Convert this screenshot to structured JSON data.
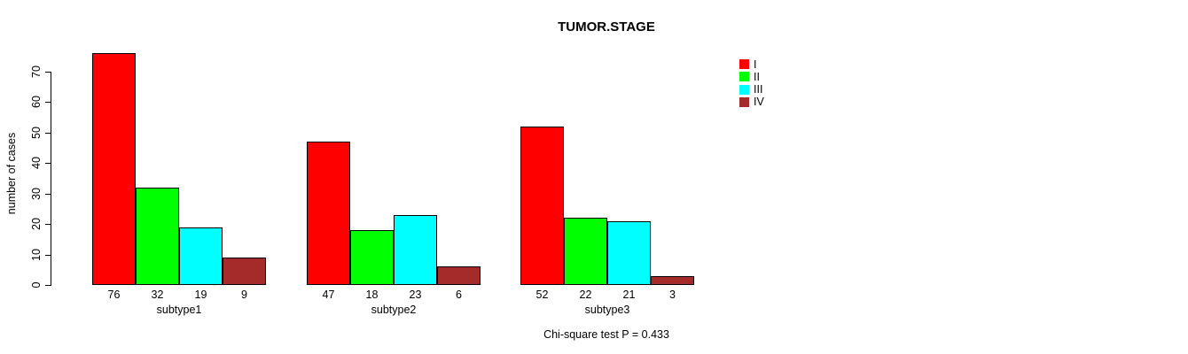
{
  "chart_data": {
    "type": "bar",
    "title": "TUMOR.STAGE",
    "ylabel": "number of cases",
    "xlabel": "",
    "ylim": [
      0,
      70
    ],
    "yticks": [
      0,
      10,
      20,
      30,
      40,
      50,
      60,
      70
    ],
    "categories": [
      "subtype1",
      "subtype2",
      "subtype3"
    ],
    "series": [
      {
        "name": "I",
        "color": "#ff0000",
        "values": [
          76,
          47,
          52
        ]
      },
      {
        "name": "II",
        "color": "#00ff00",
        "values": [
          32,
          18,
          22
        ]
      },
      {
        "name": "III",
        "color": "#00ffff",
        "values": [
          19,
          23,
          21
        ]
      },
      {
        "name": "IV",
        "color": "#a52a2a",
        "values": [
          9,
          6,
          3
        ]
      }
    ],
    "show_values_under_bars": true,
    "grid": false,
    "legend_position": "top-right",
    "legend_entries": [
      "I",
      "II",
      "III",
      "IV"
    ],
    "annotation": "Chi-square test P = 0.433",
    "axis_color": "#000000",
    "bar_border_color": "#000000",
    "background": "#ffffff"
  }
}
